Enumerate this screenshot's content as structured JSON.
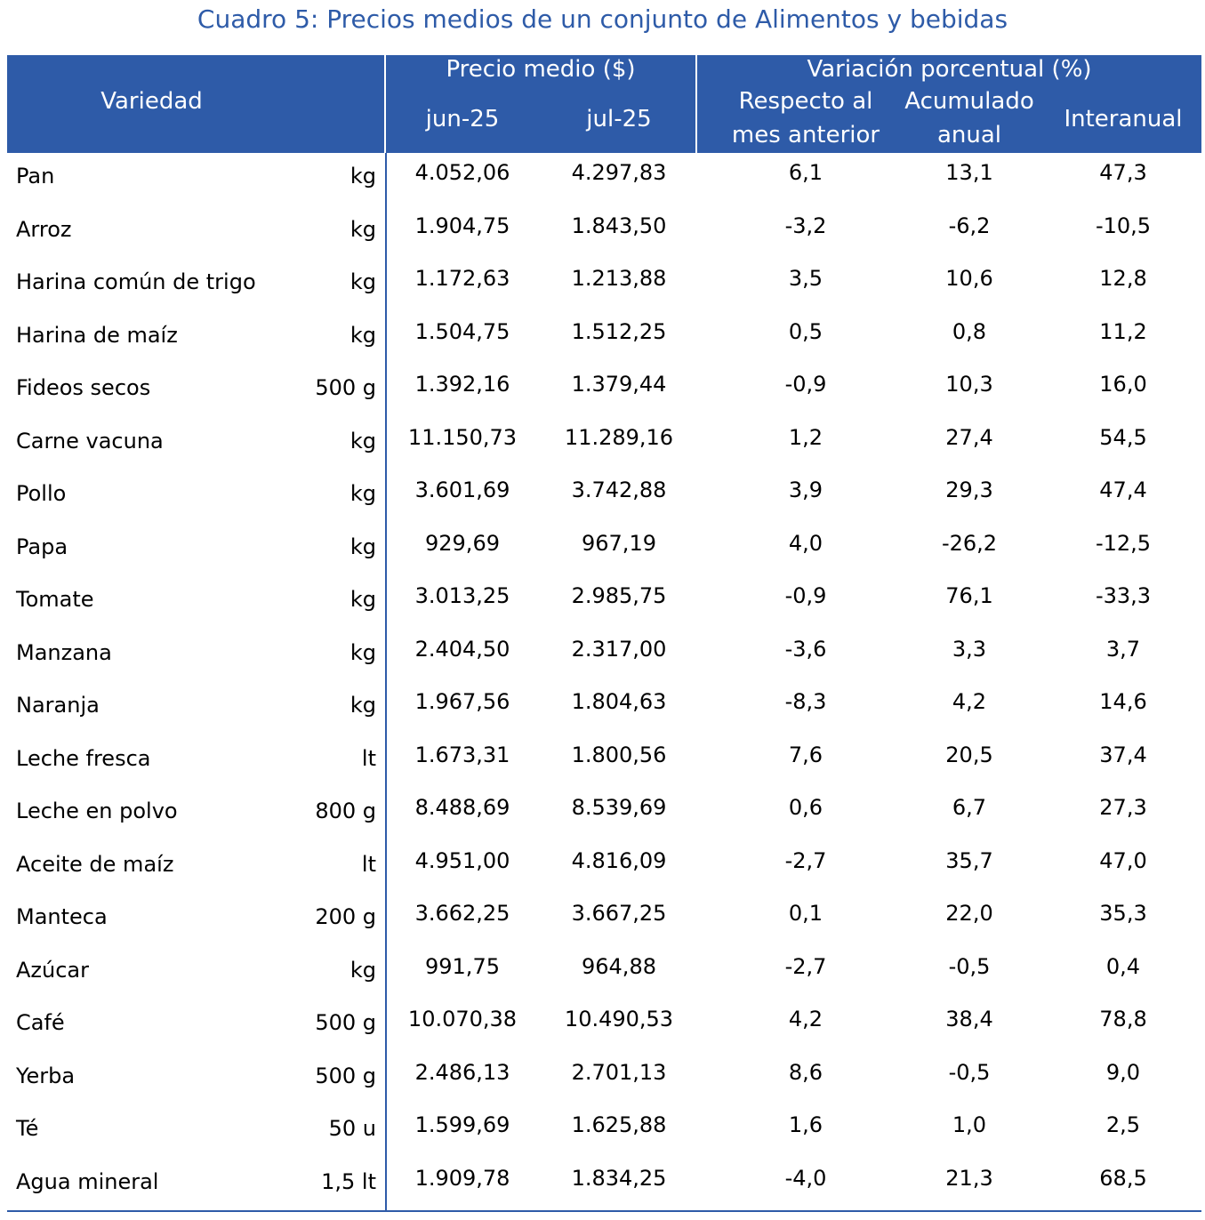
{
  "title": "Cuadro 5: Precios medios de un conjunto de Alimentos y bebidas",
  "header": {
    "variedad": "Variedad",
    "precio_medio": "Precio medio ($)",
    "jun": "jun-25",
    "jul": "jul-25",
    "variacion": "Variación porcentual (%)",
    "respecto_line1": "Respecto al",
    "respecto_line2": "mes anterior",
    "acumulado_line1": "Acumulado",
    "acumulado_line2": "anual",
    "interanual": "Interanual"
  },
  "rows": [
    {
      "name": "Pan",
      "unit": "kg",
      "jun": "4.052,06",
      "jul": "4.297,83",
      "mes": "6,1",
      "acu": "13,1",
      "int": "47,3"
    },
    {
      "name": "Arroz",
      "unit": "kg",
      "jun": "1.904,75",
      "jul": "1.843,50",
      "mes": "-3,2",
      "acu": "-6,2",
      "int": "-10,5"
    },
    {
      "name": "Harina común de trigo",
      "unit": "kg",
      "jun": "1.172,63",
      "jul": "1.213,88",
      "mes": "3,5",
      "acu": "10,6",
      "int": "12,8"
    },
    {
      "name": "Harina de maíz",
      "unit": "kg",
      "jun": "1.504,75",
      "jul": "1.512,25",
      "mes": "0,5",
      "acu": "0,8",
      "int": "11,2"
    },
    {
      "name": "Fideos secos",
      "unit": "500 g",
      "jun": "1.392,16",
      "jul": "1.379,44",
      "mes": "-0,9",
      "acu": "10,3",
      "int": "16,0"
    },
    {
      "name": "Carne vacuna",
      "unit": "kg",
      "jun": "11.150,73",
      "jul": "11.289,16",
      "mes": "1,2",
      "acu": "27,4",
      "int": "54,5"
    },
    {
      "name": "Pollo",
      "unit": "kg",
      "jun": "3.601,69",
      "jul": "3.742,88",
      "mes": "3,9",
      "acu": "29,3",
      "int": "47,4"
    },
    {
      "name": "Papa",
      "unit": "kg",
      "jun": "929,69",
      "jul": "967,19",
      "mes": "4,0",
      "acu": "-26,2",
      "int": "-12,5"
    },
    {
      "name": "Tomate",
      "unit": "kg",
      "jun": "3.013,25",
      "jul": "2.985,75",
      "mes": "-0,9",
      "acu": "76,1",
      "int": "-33,3"
    },
    {
      "name": "Manzana",
      "unit": "kg",
      "jun": "2.404,50",
      "jul": "2.317,00",
      "mes": "-3,6",
      "acu": "3,3",
      "int": "3,7"
    },
    {
      "name": "Naranja",
      "unit": "kg",
      "jun": "1.967,56",
      "jul": "1.804,63",
      "mes": "-8,3",
      "acu": "4,2",
      "int": "14,6"
    },
    {
      "name": "Leche fresca",
      "unit": "lt",
      "jun": "1.673,31",
      "jul": "1.800,56",
      "mes": "7,6",
      "acu": "20,5",
      "int": "37,4"
    },
    {
      "name": "Leche en polvo",
      "unit": "800 g",
      "jun": "8.488,69",
      "jul": "8.539,69",
      "mes": "0,6",
      "acu": "6,7",
      "int": "27,3"
    },
    {
      "name": "Aceite de maíz",
      "unit": "lt",
      "jun": "4.951,00",
      "jul": "4.816,09",
      "mes": "-2,7",
      "acu": "35,7",
      "int": "47,0"
    },
    {
      "name": "Manteca",
      "unit": "200 g",
      "jun": "3.662,25",
      "jul": "3.667,25",
      "mes": "0,1",
      "acu": "22,0",
      "int": "35,3"
    },
    {
      "name": "Azúcar",
      "unit": "kg",
      "jun": "991,75",
      "jul": "964,88",
      "mes": "-2,7",
      "acu": "-0,5",
      "int": "0,4"
    },
    {
      "name": "Café",
      "unit": "500 g",
      "jun": "10.070,38",
      "jul": "10.490,53",
      "mes": "4,2",
      "acu": "38,4",
      "int": "78,8"
    },
    {
      "name": "Yerba",
      "unit": "500 g",
      "jun": "2.486,13",
      "jul": "2.701,13",
      "mes": "8,6",
      "acu": "-0,5",
      "int": "9,0"
    },
    {
      "name": "Té",
      "unit": "50 u",
      "jun": "1.599,69",
      "jul": "1.625,88",
      "mes": "1,6",
      "acu": "1,0",
      "int": "2,5"
    },
    {
      "name": "Agua mineral",
      "unit": "1,5 lt",
      "jun": "1.909,78",
      "jul": "1.834,25",
      "mes": "-4,0",
      "acu": "21,3",
      "int": "68,5"
    }
  ],
  "colors": {
    "header_bg": "#2E5BA8",
    "title": "#2E5BA8"
  }
}
